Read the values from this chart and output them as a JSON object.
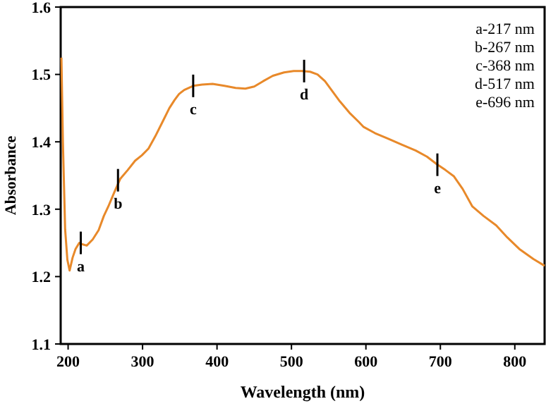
{
  "chart_data": {
    "type": "line",
    "xlabel": "Wavelength (nm)",
    "ylabel": "Absorbance",
    "xlim": [
      190,
      840
    ],
    "ylim": [
      1.1,
      1.6
    ],
    "xticks": [
      200,
      300,
      400,
      500,
      600,
      700,
      800
    ],
    "yticks": [
      1.1,
      1.2,
      1.3,
      1.4,
      1.5,
      1.6
    ],
    "grid": false,
    "marker": "none",
    "line_style": "solid",
    "series": [
      {
        "color": "#e8892a",
        "x": [
          191,
          193,
          196,
          199,
          202,
          206,
          210,
          215,
          219,
          225,
          233,
          241,
          248,
          254,
          262,
          270,
          280,
          290,
          299,
          308,
          317,
          327,
          336,
          343,
          349,
          356,
          368,
          380,
          394,
          410,
          425,
          438,
          450,
          462,
          475,
          490,
          503,
          514,
          525,
          535,
          545,
          553,
          565,
          578,
          590,
          597,
          612,
          629,
          648,
          667,
          682,
          695,
          707,
          718,
          730,
          743,
          758,
          775,
          790,
          806,
          825,
          840
        ],
        "values": [
          1.525,
          1.4,
          1.27,
          1.225,
          1.209,
          1.228,
          1.241,
          1.25,
          1.248,
          1.246,
          1.255,
          1.269,
          1.29,
          1.304,
          1.325,
          1.345,
          1.358,
          1.372,
          1.38,
          1.39,
          1.408,
          1.43,
          1.45,
          1.462,
          1.471,
          1.477,
          1.483,
          1.485,
          1.486,
          1.483,
          1.48,
          1.479,
          1.482,
          1.49,
          1.498,
          1.503,
          1.505,
          1.505,
          1.504,
          1.5,
          1.49,
          1.478,
          1.46,
          1.443,
          1.43,
          1.422,
          1.413,
          1.405,
          1.396,
          1.387,
          1.378,
          1.367,
          1.358,
          1.349,
          1.33,
          1.304,
          1.29,
          1.276,
          1.258,
          1.241,
          1.226,
          1.216
        ]
      }
    ],
    "annotations": [
      {
        "text": "a",
        "x": 217,
        "y": 1.25
      },
      {
        "text": "b",
        "x": 267,
        "y": 1.343
      },
      {
        "text": "c",
        "x": 368,
        "y": 1.483
      },
      {
        "text": "d",
        "x": 517,
        "y": 1.505
      },
      {
        "text": "e",
        "x": 696,
        "y": 1.366
      },
      "a-217 nm",
      "b-267 nm",
      "c-368 nm",
      "d-517 nm",
      "e-696 nm"
    ]
  }
}
